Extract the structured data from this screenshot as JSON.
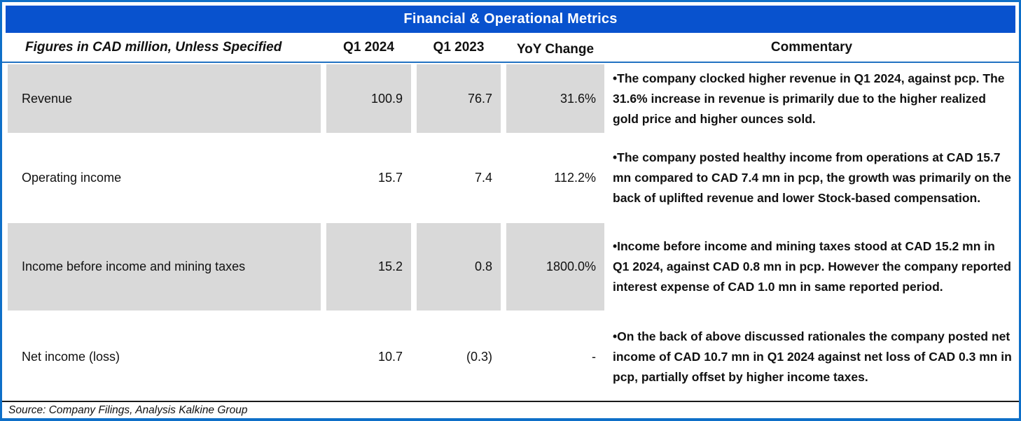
{
  "title": "Financial & Operational Metrics",
  "columns": {
    "label": "Figures in CAD million, Unless Specified",
    "q1_2024": "Q1 2024",
    "q1_2023": "Q1 2023",
    "yoy": "YoY Change",
    "commentary": "Commentary"
  },
  "rows": [
    {
      "label": "Revenue",
      "q1_2024": "100.9",
      "q1_2023": "76.7",
      "yoy": "31.6%",
      "commentary": "•The company clocked higher revenue in Q1 2024, against pcp. The 31.6% increase in revenue is primarily due to the higher realized gold price and higher ounces sold."
    },
    {
      "label": "Operating income",
      "q1_2024": "15.7",
      "q1_2023": "7.4",
      "yoy": "112.2%",
      "commentary": "•The company posted healthy income from operations at CAD 15.7 mn compared to CAD 7.4 mn in pcp, the growth was primarily on the back of uplifted revenue and lower Stock-based compensation."
    },
    {
      "label": "Income before income and mining taxes",
      "q1_2024": "15.2",
      "q1_2023": "0.8",
      "yoy": "1800.0%",
      "commentary": "•Income before income and mining taxes stood at CAD 15.2 mn in Q1 2024, against CAD 0.8 mn in pcp. However the company reported interest expense of CAD 1.0 mn in same reported period."
    },
    {
      "label": "Net income (loss)",
      "q1_2024": "10.7",
      "q1_2023": "(0.3)",
      "yoy": "-",
      "commentary": "•On the back of above discussed rationales the company posted net income of CAD 10.7 mn in Q1 2024 against net loss of CAD 0.3 mn in pcp, partially offset by higher income taxes."
    }
  ],
  "source": "Source: Company Filings, Analysis Kalkine Group",
  "colors": {
    "title_bar_blue": "#0852CE",
    "outer_border_blue": "#0E6FC8",
    "header_rule_blue": "#2272C2",
    "row_shade_gray": "#D9D9D9",
    "footer_rule_black": "#1A1A1A"
  }
}
